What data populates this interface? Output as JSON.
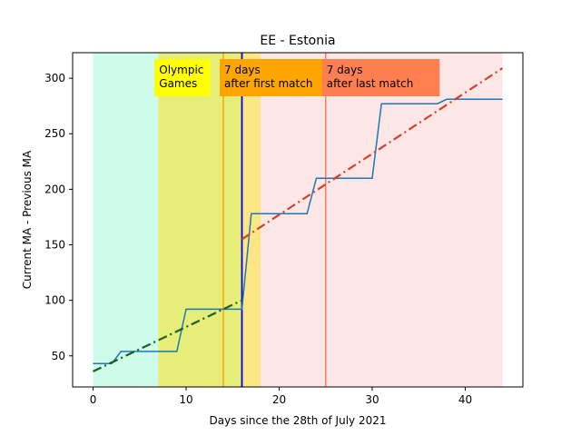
{
  "chart_data": {
    "type": "line",
    "title": "EE - Estonia",
    "xlabel": "Days since the 28th of July 2021",
    "ylabel": "Current MA - Previous MA",
    "xlim": [
      -2.2,
      46.2
    ],
    "ylim": [
      22,
      323
    ],
    "xticks": [
      0,
      10,
      20,
      30,
      40
    ],
    "yticks": [
      50,
      100,
      150,
      200,
      250,
      300
    ],
    "grid": false,
    "bands": [
      {
        "x0": 0,
        "x1": 7,
        "color": "#cffcea"
      },
      {
        "x0": 7,
        "x1": 16,
        "color": "#e6ed78"
      },
      {
        "x0": 16,
        "x1": 18,
        "color": "#fde685"
      },
      {
        "x0": 18,
        "x1": 44,
        "color": "#fde6e6"
      }
    ],
    "vlines": [
      {
        "x": 14,
        "color": "#ff9f00"
      },
      {
        "x": 16,
        "color": "#0000ee"
      },
      {
        "x": 25,
        "color": "#f47a55"
      }
    ],
    "annotations": [
      {
        "x": 7,
        "lines": [
          "Olympic",
          "Games"
        ],
        "bg": "#ffff00"
      },
      {
        "x": 14,
        "lines": [
          "7 days",
          "after first match"
        ],
        "bg": "#ffa500"
      },
      {
        "x": 25,
        "lines": [
          "7 days",
          "after last match"
        ],
        "bg": "#ff7f50"
      }
    ],
    "series": [
      {
        "color": "#1f77b4",
        "style": "solid",
        "x": [
          0,
          2,
          3,
          9,
          10,
          16,
          17,
          23,
          24,
          30,
          31,
          37,
          38,
          44
        ],
        "y": [
          43,
          43,
          54,
          54,
          92,
          92,
          178,
          178,
          210,
          210,
          277,
          277,
          281,
          281
        ]
      },
      {
        "color": "#1a5e1a",
        "style": "dashdot",
        "x": [
          0,
          16
        ],
        "y": [
          36,
          100
        ]
      },
      {
        "color": "#d2412b",
        "style": "dashdot",
        "x": [
          16,
          44
        ],
        "y": [
          155,
          309
        ]
      }
    ]
  }
}
